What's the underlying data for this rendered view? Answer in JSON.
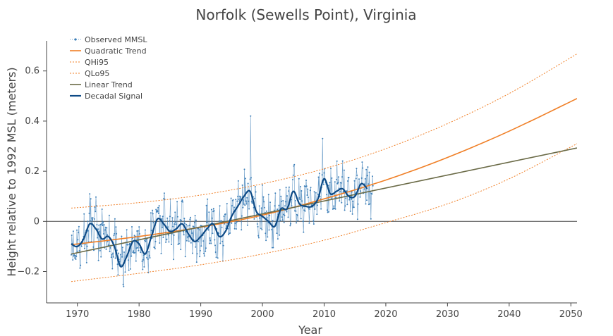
{
  "chart_data": {
    "type": "line",
    "title": "Norfolk (Sewells Point), Virginia",
    "xlabel": "Year",
    "ylabel": "Height relative to 1992 MSL (meters)",
    "xlim": [
      1965,
      2051
    ],
    "ylim": [
      -0.325,
      0.72
    ],
    "x_ticks": [
      1970,
      1980,
      1990,
      2000,
      2010,
      2020,
      2030,
      2040,
      2050
    ],
    "y_ticks": [
      -0.2,
      0,
      0.2,
      0.4,
      0.6
    ],
    "x_tick_labels": [
      "1970",
      "1980",
      "1990",
      "2000",
      "2010",
      "2020",
      "2030",
      "2040",
      "2050"
    ],
    "y_tick_labels": [
      "−0.2",
      "0",
      "0.2",
      "0.4",
      "0.6"
    ],
    "zero_line": true,
    "legend_position": "top-left",
    "colors": {
      "observed": "#3d7fb8",
      "quadratic": "#f07f26",
      "linear": "#6a6a46",
      "decadal": "#0d4a86",
      "axis": "#444444"
    },
    "series": [
      {
        "name": "Observed MMSL",
        "key": "observed",
        "style": "dotted-markers",
        "note": "monthly mean sea level, 1969 to 2018, range about -0.26 to 0.42 m"
      },
      {
        "name": "Quadratic Trend",
        "key": "quadratic",
        "style": "solid",
        "x": [
          1969,
          1980,
          1990,
          2000,
          2010,
          2020,
          2030,
          2040,
          2051
        ],
        "y": [
          -0.093,
          -0.06,
          -0.023,
          0.025,
          0.09,
          0.165,
          0.255,
          0.36,
          0.49
        ]
      },
      {
        "name": "QHi95",
        "key": "quadratic",
        "style": "dotted",
        "x": [
          1969,
          1980,
          1990,
          2000,
          2010,
          2020,
          2030,
          2040,
          2051
        ],
        "y": [
          0.053,
          0.075,
          0.105,
          0.15,
          0.21,
          0.29,
          0.39,
          0.51,
          0.668
        ]
      },
      {
        "name": "QLo95",
        "key": "quadratic",
        "style": "dotted",
        "x": [
          1969,
          1980,
          1990,
          2000,
          2010,
          2020,
          2030,
          2040,
          2051
        ],
        "y": [
          -0.24,
          -0.207,
          -0.173,
          -0.13,
          -0.075,
          -0.005,
          0.07,
          0.17,
          0.31
        ]
      },
      {
        "name": "Linear Trend",
        "key": "linear",
        "style": "solid",
        "x": [
          1969,
          2051
        ],
        "y": [
          -0.13,
          0.293
        ]
      },
      {
        "name": "Decadal Signal",
        "key": "decadal",
        "style": "thick",
        "x": [
          1969,
          1970,
          1971,
          1972,
          1973,
          1974,
          1975,
          1976,
          1977,
          1978,
          1979,
          1980,
          1981,
          1982,
          1983,
          1984,
          1985,
          1986,
          1987,
          1988,
          1989,
          1990,
          1991,
          1992,
          1993,
          1994,
          1995,
          1996,
          1997,
          1998,
          1999,
          2000,
          2001,
          2002,
          2003,
          2004,
          2005,
          2006,
          2007,
          2008,
          2009,
          2010,
          2011,
          2012,
          2013,
          2014,
          2015,
          2016,
          2017
        ],
        "y": [
          -0.09,
          -0.1,
          -0.07,
          -0.01,
          -0.03,
          -0.07,
          -0.06,
          -0.1,
          -0.18,
          -0.14,
          -0.08,
          -0.09,
          -0.13,
          -0.06,
          0.01,
          -0.01,
          -0.04,
          -0.03,
          -0.01,
          -0.05,
          -0.08,
          -0.06,
          -0.03,
          -0.01,
          -0.06,
          -0.04,
          0.02,
          0.06,
          0.1,
          0.12,
          0.04,
          0.02,
          0.0,
          -0.02,
          0.05,
          0.05,
          0.12,
          0.07,
          0.06,
          0.06,
          0.09,
          0.17,
          0.11,
          0.12,
          0.13,
          0.1,
          0.1,
          0.15,
          0.13
        ]
      }
    ]
  }
}
